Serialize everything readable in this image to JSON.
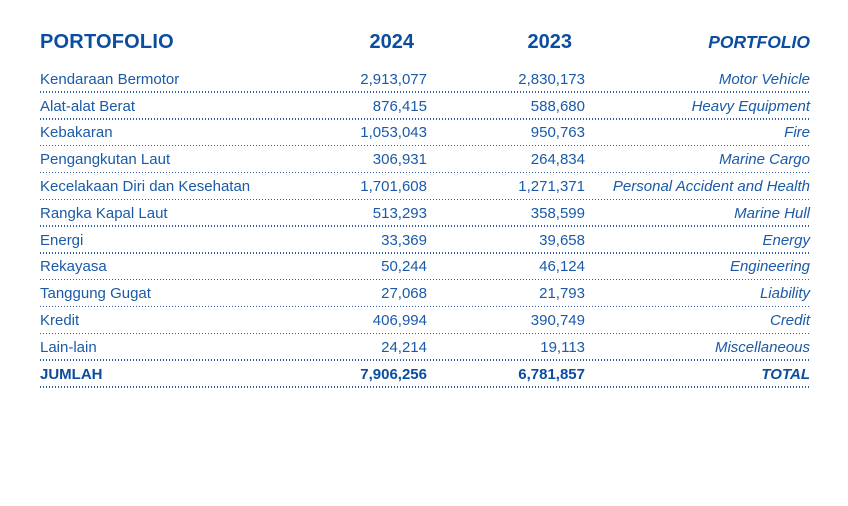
{
  "colors": {
    "text_blue": "#1a5aa8",
    "header_blue": "#0b4da1",
    "dotted_rule_blue": "#2a5fae",
    "background": "#ffffff"
  },
  "table": {
    "header": {
      "portfolio_id": "PORTOFOLIO",
      "year_2024": "2024",
      "year_2023": "2023",
      "portfolio_en": "PORTFOLIO"
    },
    "rows": [
      {
        "id": "Kendaraan Bermotor",
        "y2024": "2,913,077",
        "y2023": "2,830,173",
        "en": "Motor Vehicle"
      },
      {
        "id": "Alat-alat Berat",
        "y2024": "876,415",
        "y2023": "588,680",
        "en": "Heavy Equipment"
      },
      {
        "id": "Kebakaran",
        "y2024": "1,053,043",
        "y2023": "950,763",
        "en": "Fire"
      },
      {
        "id": "Pengangkutan Laut",
        "y2024": "306,931",
        "y2023": "264,834",
        "en": "Marine Cargo"
      },
      {
        "id": "Kecelakaan Diri dan Kesehatan",
        "y2024": "1,701,608",
        "y2023": "1,271,371",
        "en": "Personal Accident and Health"
      },
      {
        "id": "Rangka Kapal Laut",
        "y2024": "513,293",
        "y2023": "358,599",
        "en": "Marine Hull"
      },
      {
        "id": "Energi",
        "y2024": "33,369",
        "y2023": "39,658",
        "en": "Energy"
      },
      {
        "id": "Rekayasa",
        "y2024": "50,244",
        "y2023": "46,124",
        "en": "Engineering"
      },
      {
        "id": "Tanggung Gugat",
        "y2024": "27,068",
        "y2023": "21,793",
        "en": "Liability"
      },
      {
        "id": "Kredit",
        "y2024": "406,994",
        "y2023": "390,749",
        "en": "Credit"
      },
      {
        "id": "Lain-lain",
        "y2024": "24,214",
        "y2023": "19,113",
        "en": "Miscellaneous"
      }
    ],
    "total": {
      "id": "JUMLAH",
      "y2024": "7,906,256",
      "y2023": "6,781,857",
      "en": "TOTAL"
    }
  }
}
